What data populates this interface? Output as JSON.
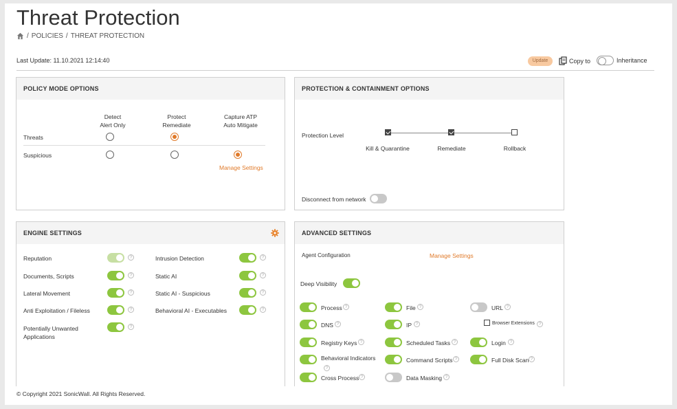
{
  "header": {
    "title": "Threat Protection",
    "breadcrumb": [
      "POLICIES",
      "THREAT PROTECTION"
    ],
    "last_update": "Last Update: 11.10.2021 12:14:40",
    "update_label": "Update",
    "copy_label": "Copy to",
    "inheritance_label": "Inheritance"
  },
  "policy_mode": {
    "title": "POLICY MODE OPTIONS",
    "columns": [
      {
        "line1": "Detect",
        "line2": "Alert Only"
      },
      {
        "line1": "Protect",
        "line2": "Remediate"
      },
      {
        "line1": "Capture ATP",
        "line2": "Auto Mitigate"
      }
    ],
    "rows": [
      {
        "label": "Threats",
        "selected": 1
      },
      {
        "label": "Suspicious",
        "selected": 2
      }
    ],
    "manage_settings": "Manage Settings"
  },
  "protection": {
    "title": "PROTECTION & CONTAINMENT OPTIONS",
    "level_label": "Protection Level",
    "levels": [
      {
        "label": "Kill & Quarantine",
        "checked": true
      },
      {
        "label": "Remediate",
        "checked": true
      },
      {
        "label": "Rollback",
        "checked": false
      }
    ],
    "disconnect_label": "Disconnect from network"
  },
  "engine": {
    "title": "ENGINE SETTINGS",
    "left": [
      {
        "label": "Reputation",
        "state": "dim"
      },
      {
        "label": "Documents, Scripts",
        "state": "on"
      },
      {
        "label": "Lateral Movement",
        "state": "on"
      },
      {
        "label": "Anti Exploitation / Fileless",
        "state": "on"
      },
      {
        "label": "Potentially Unwanted",
        "label2": "Applications",
        "state": "on"
      }
    ],
    "right": [
      {
        "label": "Intrusion Detection",
        "state": "on"
      },
      {
        "label": "Static AI",
        "state": "on"
      },
      {
        "label": "Static AI - Suspicious",
        "state": "on"
      },
      {
        "label": "Behavioral AI - Executables",
        "state": "on"
      }
    ]
  },
  "advanced": {
    "title": "ADVANCED SETTINGS",
    "agent_config_label": "Agent Configuration",
    "manage_settings": "Manage Settings",
    "deep_visibility_label": "Deep Visibility",
    "items": {
      "process": "Process",
      "file": "File",
      "url": "URL",
      "dns": "DNS",
      "ip": "IP",
      "browser_ext": "Browser Extensions",
      "registry": "Registry Keys",
      "scheduled": "Scheduled Tasks",
      "login": "Login",
      "behavioral": "Behavioral Indicators",
      "command": "Command Scripts",
      "fulldisk": "Full Disk Scan",
      "cross": "Cross Process",
      "masking": "Data Masking"
    },
    "help_glyph": "?"
  },
  "footer": {
    "copyright": "© Copyright 2021 SonicWall. All Rights Reserved."
  },
  "colors": {
    "accent_orange": "#e07a2a",
    "toggle_green": "#8dc63f"
  }
}
